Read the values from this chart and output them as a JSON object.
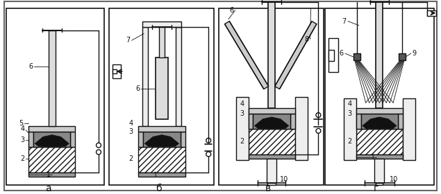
{
  "bg_color": "#ffffff",
  "line_color": "#111111",
  "sublabels": [
    "а",
    "б",
    "в",
    "г"
  ],
  "label_fontsize": 7,
  "sub_fontsize": 10
}
